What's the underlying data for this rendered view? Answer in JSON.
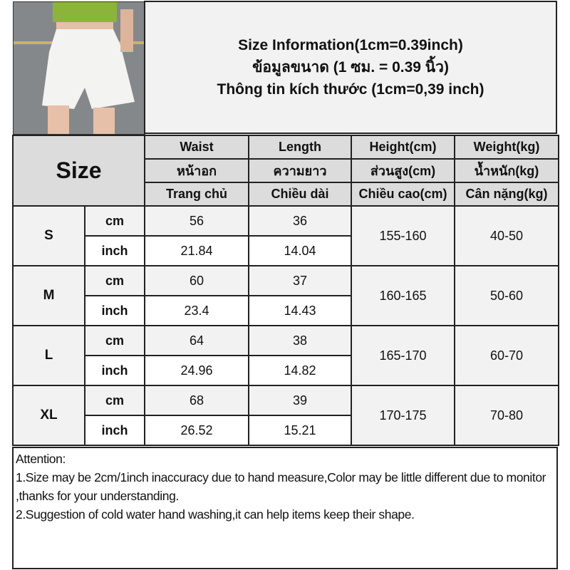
{
  "title": {
    "line1": "Size Information(1cm=0.39inch)",
    "line2": "ข้อมูลขนาด (1 ซม. = 0.39 นิ้ว)",
    "line3": "Thông tin kích thước (1cm=0,39 inch)"
  },
  "headers": {
    "size": "Size",
    "columns": [
      {
        "en": "Waist",
        "th": "หน้าอก",
        "vi": "Trang chủ"
      },
      {
        "en": "Length",
        "th": "ความยาว",
        "vi": "Chiều dài"
      },
      {
        "en": "Height(cm)",
        "th": "ส่วนสูง(cm)",
        "vi": "Chiều cao(cm)"
      },
      {
        "en": "Weight(kg)",
        "th": "น้ำหนัก(kg)",
        "vi": "Cân nặng(kg)"
      }
    ]
  },
  "units": {
    "cm": "cm",
    "inch": "inch"
  },
  "rows": [
    {
      "size": "S",
      "cm": [
        "56",
        "36"
      ],
      "inch": [
        "21.84",
        "14.04"
      ],
      "height": "155-160",
      "weight": "40-50"
    },
    {
      "size": "M",
      "cm": [
        "60",
        "37"
      ],
      "inch": [
        "23.4",
        "14.43"
      ],
      "height": "160-165",
      "weight": "50-60"
    },
    {
      "size": "L",
      "cm": [
        "64",
        "38"
      ],
      "inch": [
        "24.96",
        "14.82"
      ],
      "height": "165-170",
      "weight": "60-70"
    },
    {
      "size": "XL",
      "cm": [
        "68",
        "39"
      ],
      "inch": [
        "26.52",
        "15.21"
      ],
      "height": "170-175",
      "weight": "70-80"
    }
  ],
  "notes": {
    "heading": "Attention:",
    "line1": "1.Size may be 2cm/1inch inaccuracy due to hand measure,Color may be little different due to monitor ,thanks for your understanding.",
    "line2": "2.Suggestion of cold water hand washing,it can help items keep their shape."
  },
  "colors": {
    "header_bg": "#dcdcdc",
    "cm_row_bg": "#f2f2f2",
    "inch_row_bg": "#ffffff",
    "border": "#222222"
  }
}
